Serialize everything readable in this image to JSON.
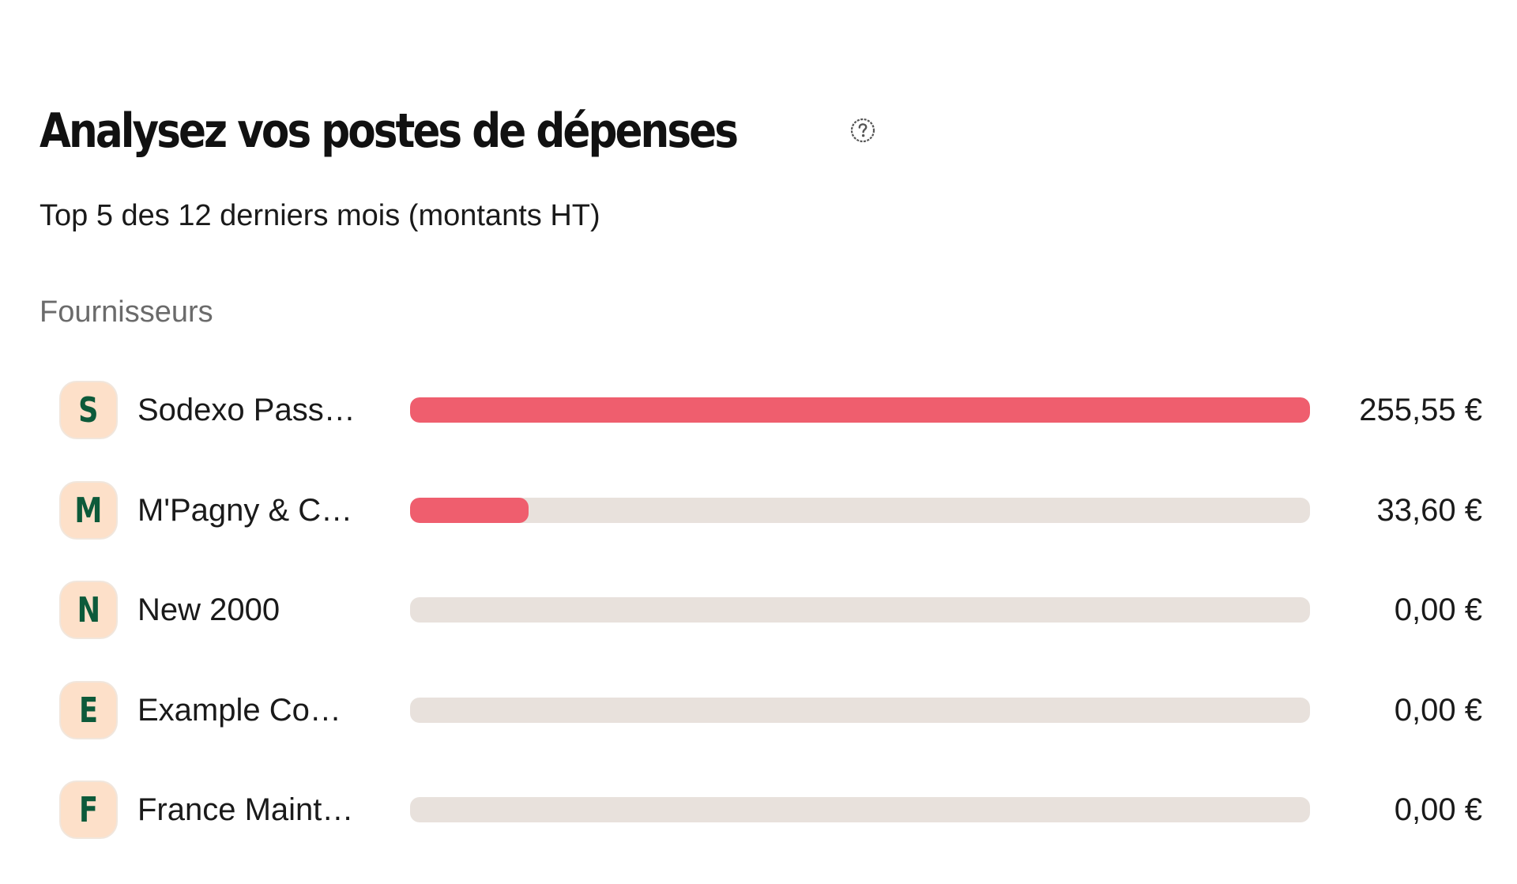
{
  "header": {
    "title": "Analysez vos postes de dépenses",
    "help_icon": "question-circle-icon",
    "subtitle": "Top 5 des 12 derniers mois (montants HT)"
  },
  "section": {
    "label": "Fournisseurs"
  },
  "colors": {
    "bar_fill": "#ef5e6e",
    "bar_track": "#e8e1dc",
    "avatar_bg": "#fde0c9",
    "avatar_letter": "#0d5a3a"
  },
  "suppliers": [
    {
      "initial": "S",
      "name": "Sodexo Pass…",
      "amount": "255,55 €",
      "value": 255.55
    },
    {
      "initial": "M",
      "name": "M'Pagny & C…",
      "amount": "33,60 €",
      "value": 33.6
    },
    {
      "initial": "N",
      "name": "New 2000",
      "amount": "0,00 €",
      "value": 0
    },
    {
      "initial": "E",
      "name": "Example Co…",
      "amount": "0,00 €",
      "value": 0
    },
    {
      "initial": "F",
      "name": "France Maint…",
      "amount": "0,00 €",
      "value": 0
    }
  ],
  "chart_data": {
    "type": "bar",
    "orientation": "horizontal",
    "title": "Analysez vos postes de dépenses",
    "subtitle": "Top 5 des 12 derniers mois (montants HT)",
    "category_label": "Fournisseurs",
    "categories": [
      "Sodexo Pass…",
      "M'Pagny & C…",
      "New 2000",
      "Example Co…",
      "France Maint…"
    ],
    "values": [
      255.55,
      33.6,
      0.0,
      0.0,
      0.0
    ],
    "value_labels": [
      "255,55 €",
      "33,60 €",
      "0,00 €",
      "0,00 €",
      "0,00 €"
    ],
    "unit": "€",
    "xlim": [
      0,
      255.55
    ],
    "grid": false,
    "legend": "none"
  }
}
